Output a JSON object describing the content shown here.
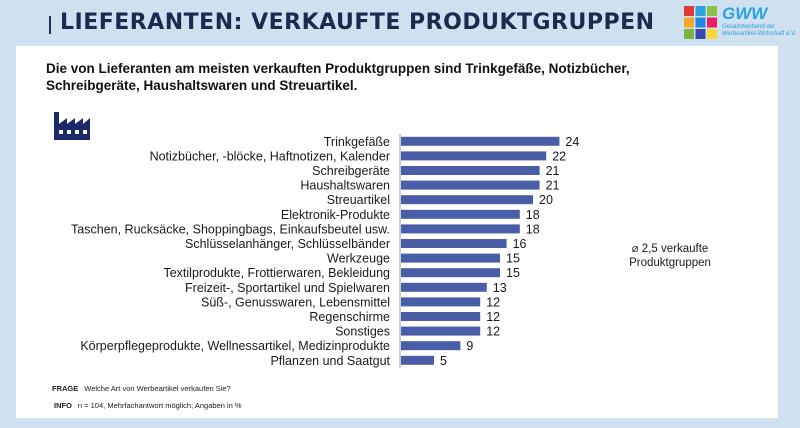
{
  "header": {
    "title": "LIEFERANTEN: VERKAUFTE PRODUKTGRUPPEN"
  },
  "logo": {
    "name": "GWW",
    "subtitle": "Gesamtverband der Werbeartikel-Wirtschaft e.V.",
    "colors": [
      "#e53935",
      "#2aa3dc",
      "#8bc34a",
      "#f9a825",
      "#1e88e5",
      "#e91e63",
      "#7cb342",
      "#3949ab",
      "#fdd835"
    ]
  },
  "subtitle": "Die von Lieferanten am meisten verkauften Produktgruppen sind Trinkgefäße, Notizbücher, Schreibgeräte, Haushaltswaren und Streuartikel.",
  "icon": "factory-icon",
  "note": {
    "line1": "⌀ 2,5 verkaufte",
    "line2": "Produktgruppen"
  },
  "footer": {
    "frage_label": "FRAGE",
    "frage_text": "Welche Art von Werbeartikel verkaufen Sie?",
    "info_label": "INFO",
    "info_text": "n = 104, Mehrfachantwort möglich; Angaben in %"
  },
  "colors": {
    "bar": "#4a5ea8",
    "title": "#1b2a4e",
    "background": "#cfe0f1"
  },
  "chart_data": {
    "type": "bar",
    "orientation": "horizontal",
    "title": "",
    "xlabel": "",
    "ylabel": "",
    "unit": "%",
    "xlim": [
      0,
      25
    ],
    "categories": [
      "Trinkgefäße",
      "Notizbücher, -blöcke, Haftnotizen, Kalender",
      "Schreibgeräte",
      "Haushaltswaren",
      "Streuartikel",
      "Elektronik-Produkte",
      "Taschen, Rucksäcke, Shoppingbags, Einkaufsbeutel usw.",
      "Schlüsselanhänger, Schlüsselbänder",
      "Werkzeuge",
      "Textilprodukte, Frottierwaren, Bekleidung",
      "Freizeit-, Sportartikel und Spielwaren",
      "Süß-, Genusswaren, Lebensmittel",
      "Regenschirme",
      "Sonstiges",
      "Körperpflegeprodukte, Wellnessartikel, Medizinprodukte",
      "Pflanzen und Saatgut"
    ],
    "values": [
      24,
      22,
      21,
      21,
      20,
      18,
      18,
      16,
      15,
      15,
      13,
      12,
      12,
      12,
      9,
      5
    ]
  }
}
